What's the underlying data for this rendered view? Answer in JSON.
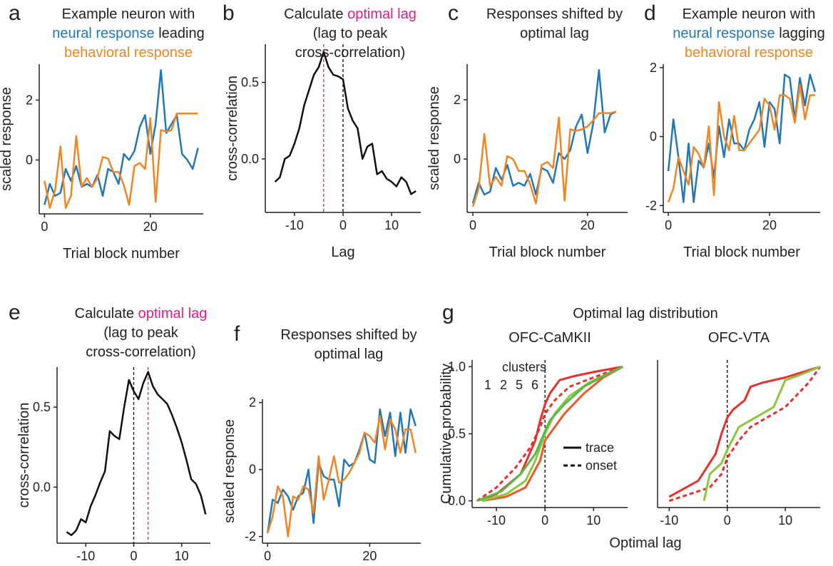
{
  "chart_data": [
    {
      "type": "line",
      "panel": "a",
      "title": [
        [
          {
            "text": "Example neuron with",
            "color": "#222222"
          }
        ],
        [
          {
            "text": "neural response",
            "color": "#2277b5"
          },
          {
            "text": "leading",
            "color": "#222222"
          }
        ],
        [
          {
            "text": "behavioral response",
            "color": "#f28522"
          }
        ]
      ],
      "xlabel": "Trial block number",
      "ylabel": "scaled response",
      "xlim": [
        -1,
        30
      ],
      "ylim": [
        -1.8,
        3.2
      ],
      "xticks": [
        0,
        20
      ],
      "yticks": [
        0,
        2
      ],
      "x": [
        0,
        1,
        2,
        3,
        4,
        5,
        6,
        7,
        8,
        9,
        10,
        11,
        12,
        13,
        14,
        15,
        16,
        17,
        18,
        19,
        20,
        21,
        22,
        23,
        24,
        25,
        26,
        27,
        28,
        29
      ],
      "series": [
        {
          "color": "#2277b5",
          "values": [
            -1.5,
            -0.8,
            -1.2,
            -1.1,
            -0.3,
            -0.7,
            -0.2,
            -0.9,
            -0.8,
            -0.9,
            -0.5,
            -1.2,
            -0.3,
            -0.4,
            -0.8,
            0.2,
            0.0,
            0.3,
            1.1,
            1.5,
            0.2,
            1.2,
            3.0,
            0.9,
            1.2,
            1.5,
            0.2,
            0.0,
            -0.3,
            0.4
          ]
        },
        {
          "color": "#f28522",
          "values": [
            -0.7,
            -1.6,
            -1.0,
            0.45,
            -1.6,
            -1.2,
            0.8,
            -0.9,
            -0.6,
            -0.9,
            -0.6,
            0.1,
            0.05,
            -0.4,
            -0.4,
            -0.85,
            -1.5,
            -0.2,
            -0.1,
            -0.3,
            1.4,
            -1.4,
            1.0,
            0.95,
            1.0,
            1.55,
            1.55,
            1.55,
            1.55,
            1.55
          ]
        }
      ]
    },
    {
      "type": "line",
      "panel": "b",
      "title": [
        [
          {
            "text": "Calculate",
            "color": "#222222"
          },
          {
            "text": "optimal lag",
            "color": "#e6198a"
          }
        ],
        [
          {
            "text": "(lag to peak",
            "color": "#222222"
          }
        ],
        [
          {
            "text": "cross-correlation)",
            "color": "#222222"
          }
        ]
      ],
      "xlabel": "Lag",
      "ylabel": "cross-correlation",
      "xlim": [
        -16,
        16
      ],
      "ylim": [
        -0.35,
        0.75
      ],
      "xticks": [
        -10,
        0,
        10
      ],
      "yticks": [
        {
          "value": 0,
          "label": "0.0"
        },
        0.5
      ],
      "vlines": [
        {
          "x": -4,
          "color": "#e6198a"
        },
        {
          "x": 0,
          "color": "#000000"
        }
      ],
      "x": [
        -14,
        -13,
        -12,
        -11,
        -10,
        -9,
        -8,
        -7,
        -6,
        -5,
        -4,
        -3,
        -2,
        -1,
        0,
        1,
        2,
        3,
        4,
        5,
        6,
        7,
        8,
        9,
        10,
        11,
        12,
        13,
        14,
        15
      ],
      "series": [
        {
          "color": "#111111",
          "values": [
            -0.15,
            -0.12,
            0.0,
            0.02,
            0.1,
            0.2,
            0.35,
            0.45,
            0.55,
            0.6,
            0.7,
            0.6,
            0.55,
            0.54,
            0.52,
            0.33,
            0.25,
            0.2,
            0.0,
            0.08,
            0.1,
            -0.1,
            -0.08,
            -0.13,
            -0.15,
            -0.18,
            -0.12,
            -0.15,
            -0.23,
            -0.21
          ]
        }
      ]
    },
    {
      "type": "line",
      "panel": "c",
      "title": [
        [
          {
            "text": "Responses shifted by",
            "color": "#222222"
          }
        ],
        [
          {
            "text": "optimal lag",
            "color": "#222222"
          }
        ]
      ],
      "xlabel": "Trial block number",
      "ylabel": "scaled response",
      "xlim": [
        -1,
        27
      ],
      "ylim": [
        -1.8,
        3.2
      ],
      "xticks": [
        0,
        20
      ],
      "yticks": [
        0,
        2
      ],
      "x": [
        0,
        1,
        2,
        3,
        4,
        5,
        6,
        7,
        8,
        9,
        10,
        11,
        12,
        13,
        14,
        15,
        16,
        17,
        18,
        19,
        20,
        21,
        22,
        23,
        24,
        25
      ],
      "series": [
        {
          "color": "#2277b5",
          "values": [
            -1.5,
            -0.8,
            -1.2,
            -1.1,
            -0.3,
            -0.7,
            -0.2,
            -0.9,
            -0.8,
            -0.9,
            -0.5,
            -1.2,
            -0.3,
            -0.4,
            -0.8,
            0.2,
            0.0,
            0.3,
            1.1,
            1.5,
            0.2,
            1.2,
            3.0,
            0.9,
            1.5,
            1.6
          ]
        },
        {
          "color": "#f28522",
          "values": [
            -1.6,
            -1.0,
            0.85,
            -0.9,
            -0.6,
            -0.9,
            0.1,
            0.0,
            -0.4,
            -0.4,
            -0.85,
            -1.5,
            -0.2,
            -0.1,
            -0.3,
            1.4,
            -1.4,
            1.0,
            0.95,
            1.0,
            1.1,
            1.3,
            1.55,
            1.55,
            1.55,
            1.6
          ]
        }
      ]
    },
    {
      "type": "line",
      "panel": "d",
      "title": [
        [
          {
            "text": "Example neuron with",
            "color": "#222222"
          }
        ],
        [
          {
            "text": "neural response",
            "color": "#2277b5"
          },
          {
            "text": "lagging",
            "color": "#222222"
          }
        ],
        [
          {
            "text": "behavioral response",
            "color": "#f28522"
          }
        ]
      ],
      "xlabel": "Trial block number",
      "xlim": [
        -1,
        30
      ],
      "ylim": [
        -2.2,
        2.1
      ],
      "xticks": [
        0,
        20
      ],
      "yticks": [
        -2,
        0,
        2
      ],
      "x": [
        0,
        1,
        2,
        3,
        4,
        5,
        6,
        7,
        8,
        9,
        10,
        11,
        12,
        13,
        14,
        15,
        16,
        17,
        18,
        19,
        20,
        21,
        22,
        23,
        24,
        25,
        26,
        27,
        28,
        29
      ],
      "series": [
        {
          "color": "#2277b5",
          "values": [
            -1.0,
            0.5,
            -0.6,
            -1.9,
            -0.2,
            -1.9,
            -0.7,
            -0.9,
            -0.2,
            -1.2,
            0.3,
            -0.6,
            0.5,
            -0.2,
            -0.2,
            -0.4,
            0.2,
            0.5,
            1.0,
            -0.3,
            1.0,
            0.8,
            -0.2,
            1.8,
            1.7,
            0.5,
            1.7,
            0.9,
            1.8,
            1.3
          ]
        },
        {
          "color": "#f28522",
          "values": [
            -1.9,
            -1.5,
            -0.6,
            -1.0,
            -1.4,
            -0.3,
            -0.5,
            -0.9,
            0.3,
            -1.7,
            1.0,
            0.0,
            -0.4,
            0.6,
            -0.4,
            -0.4,
            -0.2,
            0.0,
            0.2,
            1.1,
            0.9,
            0.2,
            1.2,
            1.2,
            1.1,
            0.4,
            1.5,
            0.5,
            1.2,
            1.2
          ]
        }
      ]
    },
    {
      "type": "line",
      "panel": "e",
      "title": [
        [
          {
            "text": "Calculate",
            "color": "#222222"
          },
          {
            "text": "optimal lag",
            "color": "#e6198a"
          }
        ],
        [
          {
            "text": "(lag to peak",
            "color": "#222222"
          }
        ],
        [
          {
            "text": "cross-correlation)",
            "color": "#222222"
          }
        ]
      ],
      "xlabel": "Lag",
      "ylabel": "cross-correlation",
      "xlim": [
        -16,
        16
      ],
      "ylim": [
        -0.35,
        0.75
      ],
      "xticks": [
        -10,
        0,
        10
      ],
      "yticks": [
        {
          "value": 0,
          "label": "0.0"
        },
        0.5
      ],
      "vlines": [
        {
          "x": 0,
          "color": "#000000"
        },
        {
          "x": 3,
          "color": "#e6198a"
        }
      ],
      "x": [
        -14,
        -13,
        -12,
        -11,
        -10,
        -9,
        -8,
        -7,
        -6,
        -5,
        -4,
        -3,
        -2,
        -1,
        0,
        1,
        2,
        3,
        4,
        5,
        6,
        7,
        8,
        9,
        10,
        11,
        12,
        13,
        14,
        15
      ],
      "series": [
        {
          "color": "#111111",
          "values": [
            -0.28,
            -0.3,
            -0.27,
            -0.2,
            -0.22,
            -0.12,
            -0.05,
            0.03,
            0.1,
            0.35,
            0.32,
            0.3,
            0.5,
            0.67,
            0.6,
            0.55,
            0.65,
            0.72,
            0.63,
            0.58,
            0.55,
            0.52,
            0.45,
            0.37,
            0.28,
            0.17,
            0.05,
            0.02,
            -0.05,
            -0.17
          ]
        }
      ]
    },
    {
      "type": "line",
      "panel": "f",
      "title": [
        [
          {
            "text": "Responses shifted by",
            "color": "#222222"
          }
        ],
        [
          {
            "text": "optimal lag",
            "color": "#222222"
          }
        ]
      ],
      "xlabel": "Trial block number",
      "ylabel": "scaled response",
      "xlim": [
        -1,
        30
      ],
      "ylim": [
        -2.2,
        2.1
      ],
      "xticks": [
        0,
        20
      ],
      "yticks": [
        -2,
        0,
        2
      ],
      "x": [
        0,
        1,
        2,
        3,
        4,
        5,
        6,
        7,
        8,
        9,
        10,
        11,
        12,
        13,
        14,
        15,
        16,
        17,
        18,
        19,
        20,
        21,
        22,
        23,
        24,
        25,
        26,
        27,
        28,
        29
      ],
      "series": [
        {
          "color": "#2277b5",
          "values": [
            -1.9,
            -0.9,
            -1.0,
            -0.6,
            -0.8,
            -1.2,
            -0.8,
            -0.7,
            0.0,
            -1.6,
            0.2,
            -0.2,
            -0.3,
            -0.3,
            -1.1,
            0.3,
            0.1,
            0.2,
            0.6,
            1.1,
            0.3,
            0.2,
            1.8,
            1.0,
            1.7,
            0.4,
            1.7,
            0.5,
            1.8,
            1.3
          ]
        },
        {
          "color": "#f28522",
          "values": [
            -1.9,
            -1.4,
            -0.5,
            -0.8,
            -2.0,
            -0.8,
            -0.9,
            -0.5,
            -0.6,
            -1.3,
            0.4,
            -0.9,
            -0.3,
            0.4,
            -0.4,
            -0.3,
            -0.1,
            0.2,
            0.5,
            1.1,
            1.0,
            0.8,
            1.6,
            0.6,
            1.5,
            1.2,
            0.5,
            1.2,
            1.2,
            0.5
          ]
        }
      ]
    },
    {
      "type": "cdf",
      "panel": "g",
      "title": "Optimal lag distribution",
      "xlabel": "Optimal lag",
      "ylabel": "Cumulative probability",
      "legend_title": "clusters",
      "clusters": [
        {
          "label": "1",
          "color": "#e8312f"
        },
        {
          "label": "2",
          "color": "#f0582a"
        },
        {
          "label": "5",
          "color": "#8cc63f"
        },
        {
          "label": "6",
          "color": "#5ab947"
        }
      ],
      "styles": [
        {
          "label": "trace",
          "dashed": false
        },
        {
          "label": "onset",
          "dashed": true
        }
      ],
      "subplots": [
        {
          "title": "OFC-CaMKII",
          "xlim": [
            -15,
            17
          ],
          "ylim": [
            -0.05,
            1.05
          ],
          "xticks": [
            -10,
            0,
            10
          ],
          "yticks": [
            {
              "value": 0,
              "label": "0.0"
            },
            0.5,
            {
              "value": 1,
              "label": "1.0"
            }
          ],
          "vlines": [
            {
              "x": 0,
              "color": "#000000"
            }
          ],
          "series": [
            {
              "cluster": 0,
              "style": 0,
              "x": [
                -14,
                -10,
                -5,
                -2,
                -1,
                0,
                1,
                3,
                6,
                10,
                16
              ],
              "values": [
                0,
                0.05,
                0.2,
                0.45,
                0.6,
                0.72,
                0.8,
                0.9,
                0.93,
                0.96,
                1.0
              ]
            },
            {
              "cluster": 1,
              "style": 0,
              "x": [
                -13,
                -8,
                -4,
                -1,
                0,
                2,
                4,
                8,
                12,
                16
              ],
              "values": [
                0,
                0.03,
                0.1,
                0.3,
                0.45,
                0.55,
                0.65,
                0.8,
                0.92,
                1.0
              ]
            },
            {
              "cluster": 0,
              "style": 1,
              "x": [
                -14,
                -10,
                -6,
                -3,
                -1,
                0,
                2,
                5,
                10,
                16
              ],
              "values": [
                0,
                0.1,
                0.25,
                0.4,
                0.55,
                0.65,
                0.75,
                0.85,
                0.92,
                1.0
              ]
            },
            {
              "cluster": 2,
              "style": 0,
              "x": [
                -13,
                -8,
                -4,
                -2,
                0,
                2,
                5,
                9,
                13,
                16
              ],
              "values": [
                0,
                0.05,
                0.15,
                0.3,
                0.5,
                0.65,
                0.78,
                0.88,
                0.95,
                1.0
              ]
            },
            {
              "cluster": 3,
              "style": 0,
              "x": [
                -14,
                -9,
                -5,
                -2,
                0,
                1,
                4,
                8,
                12,
                16
              ],
              "values": [
                0,
                0.07,
                0.2,
                0.35,
                0.52,
                0.6,
                0.72,
                0.85,
                0.93,
                1.0
              ]
            }
          ]
        },
        {
          "title": "OFC-VTA",
          "xlim": [
            -12,
            16
          ],
          "ylim": [
            -0.05,
            1.05
          ],
          "xticks": [
            -10,
            0,
            10
          ],
          "vlines": [
            {
              "x": 0,
              "color": "#000000"
            }
          ],
          "series": [
            {
              "cluster": 0,
              "style": 0,
              "x": [
                -10,
                -5,
                -2,
                -1,
                0,
                1,
                3,
                4,
                6,
                10,
                16
              ],
              "values": [
                0.03,
                0.15,
                0.35,
                0.5,
                0.62,
                0.68,
                0.75,
                0.85,
                0.88,
                0.92,
                1.0
              ]
            },
            {
              "cluster": 0,
              "style": 1,
              "x": [
                -10,
                -3,
                -1,
                0,
                2,
                4,
                6,
                10,
                14,
                16
              ],
              "values": [
                0,
                0.1,
                0.2,
                0.32,
                0.45,
                0.55,
                0.6,
                0.7,
                0.88,
                1.0
              ]
            },
            {
              "cluster": 2,
              "style": 0,
              "x": [
                -4,
                -3,
                -1,
                0,
                2,
                4,
                6,
                8,
                10,
                12,
                16
              ],
              "values": [
                0,
                0.2,
                0.28,
                0.38,
                0.55,
                0.6,
                0.65,
                0.7,
                0.9,
                0.93,
                1.0
              ]
            }
          ]
        }
      ]
    }
  ]
}
